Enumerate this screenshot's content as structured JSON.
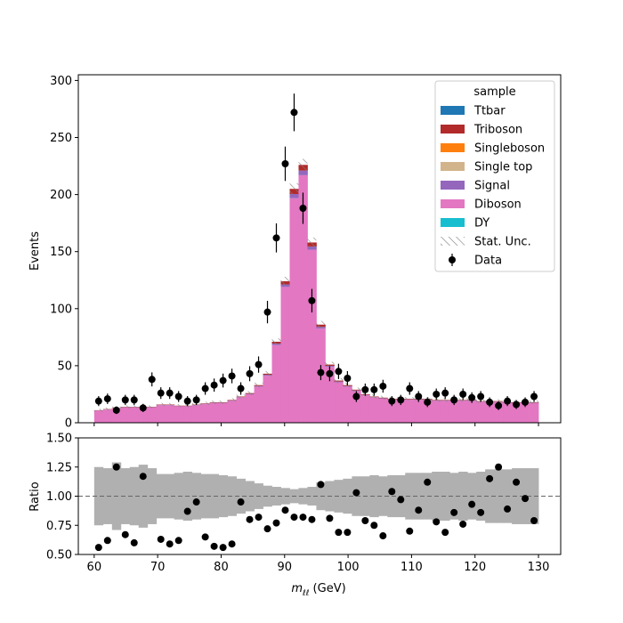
{
  "chart_data": {
    "type": "bar",
    "stacked": true,
    "top_panel": {
      "ylabel": "Events",
      "ylim": [
        0,
        305
      ],
      "yticks": [
        0,
        50,
        100,
        150,
        200,
        250,
        300
      ],
      "x": [
        60.7,
        62.1,
        63.5,
        64.9,
        66.3,
        67.7,
        69.1,
        70.5,
        71.9,
        73.3,
        74.7,
        76.1,
        77.5,
        78.9,
        80.3,
        81.7,
        83.1,
        84.5,
        85.9,
        87.3,
        88.7,
        90.1,
        91.5,
        92.9,
        94.3,
        95.7,
        97.1,
        98.5,
        99.9,
        101.3,
        102.7,
        104.1,
        105.5,
        106.9,
        108.3,
        109.7,
        111.1,
        112.5,
        113.9,
        115.3,
        116.7,
        118.1,
        119.5,
        120.9,
        122.3,
        123.7,
        125.1,
        126.5,
        127.9,
        129.3
      ],
      "bin_edges": [
        60,
        130
      ],
      "mc_total": [
        11,
        12,
        13,
        14,
        14,
        14,
        14,
        16,
        16,
        15,
        15,
        16,
        17,
        18,
        18,
        20,
        23,
        26,
        33,
        43,
        71,
        124,
        205,
        226,
        158,
        86,
        51,
        37,
        33,
        29,
        25,
        23,
        22,
        21,
        21,
        21,
        21,
        21,
        20,
        20,
        20,
        20,
        20,
        19,
        19,
        19,
        18,
        18,
        18,
        18
      ],
      "data": [
        19,
        21,
        11,
        20,
        20,
        13,
        38,
        26,
        26,
        23,
        19,
        20,
        30,
        33,
        37,
        41,
        30,
        43,
        51,
        97,
        162,
        227,
        272,
        188,
        107,
        44,
        43,
        45,
        39,
        23,
        29,
        29,
        32,
        19,
        20,
        30,
        23,
        18,
        25,
        26,
        20,
        25,
        22,
        23,
        18,
        15,
        19,
        16,
        18,
        23
      ],
      "legend_title": "sample",
      "legend": [
        {
          "label": "Ttbar",
          "color": "#1f77b4",
          "kind": "patch"
        },
        {
          "label": "Triboson",
          "color": "#b22a2a",
          "kind": "patch"
        },
        {
          "label": "Singleboson",
          "color": "#ff7f0e",
          "kind": "patch"
        },
        {
          "label": "Single top",
          "color": "#d2b48c",
          "kind": "patch"
        },
        {
          "label": "Signal",
          "color": "#9467bd",
          "kind": "patch"
        },
        {
          "label": "Diboson",
          "color": "#e377c2",
          "kind": "patch"
        },
        {
          "label": "DY",
          "color": "#17becf",
          "kind": "patch"
        },
        {
          "label": "Stat. Unc.",
          "color": "#888888",
          "kind": "hatch"
        },
        {
          "label": "Data",
          "color": "#000000",
          "kind": "errorbar"
        }
      ],
      "legend_position": "top-right"
    },
    "ratio_panel": {
      "ylabel": "Ratio",
      "ylim": [
        0.5,
        1.5
      ],
      "yticks": [
        "0.50",
        "0.75",
        "1.00",
        "1.25",
        "1.50"
      ],
      "reference_line": 1.0,
      "band_halfwidth": [
        0.25,
        0.24,
        0.29,
        0.24,
        0.25,
        0.27,
        0.24,
        0.19,
        0.19,
        0.2,
        0.21,
        0.2,
        0.19,
        0.19,
        0.18,
        0.17,
        0.15,
        0.13,
        0.11,
        0.09,
        0.08,
        0.07,
        0.06,
        0.07,
        0.08,
        0.12,
        0.13,
        0.14,
        0.15,
        0.17,
        0.17,
        0.18,
        0.17,
        0.18,
        0.18,
        0.2,
        0.2,
        0.2,
        0.21,
        0.21,
        0.2,
        0.21,
        0.2,
        0.21,
        0.23,
        0.23,
        0.23,
        0.24,
        0.24,
        0.24
      ],
      "ratio": [
        0.56,
        0.62,
        1.25,
        0.67,
        0.6,
        1.17,
        0.63,
        0.59,
        0.62,
        0.87,
        0.95,
        0.65,
        0.57,
        0.56,
        0.59,
        0.95,
        0.8,
        0.82,
        0.72,
        0.77,
        0.88,
        0.82,
        0.82,
        0.8,
        1.1,
        0.81,
        0.69,
        0.69,
        1.03,
        0.79,
        0.75,
        0.66,
        1.04,
        0.97,
        0.7,
        0.88,
        1.12,
        0.78,
        0.69,
        0.86,
        0.76,
        0.93,
        0.86,
        1.15,
        1.25,
        0.89,
        1.12,
        0.98,
        0.79
      ],
      "ratio_x": [
        60.7,
        62.1,
        63.5,
        64.9,
        66.3,
        67.7,
        70.5,
        71.9,
        73.3,
        74.7,
        76.1,
        77.5,
        78.9,
        80.3,
        81.7,
        83.1,
        84.5,
        85.9,
        87.3,
        88.7,
        90.1,
        91.5,
        92.9,
        94.3,
        95.7,
        97.1,
        98.5,
        99.9,
        101.3,
        102.7,
        104.1,
        105.5,
        106.9,
        108.3,
        109.7,
        111.1,
        112.5,
        113.9,
        115.3,
        116.7,
        118.1,
        119.5,
        120.9,
        122.3,
        123.7,
        125.1,
        126.5,
        127.9,
        129.3
      ]
    },
    "xlabel_main": "m",
    "xlabel_sub": "ℓℓ",
    "xlabel_unit": " (GeV)",
    "xlim": [
      57.5,
      133.5
    ],
    "xticks": [
      60,
      70,
      80,
      90,
      100,
      110,
      120,
      130
    ]
  }
}
